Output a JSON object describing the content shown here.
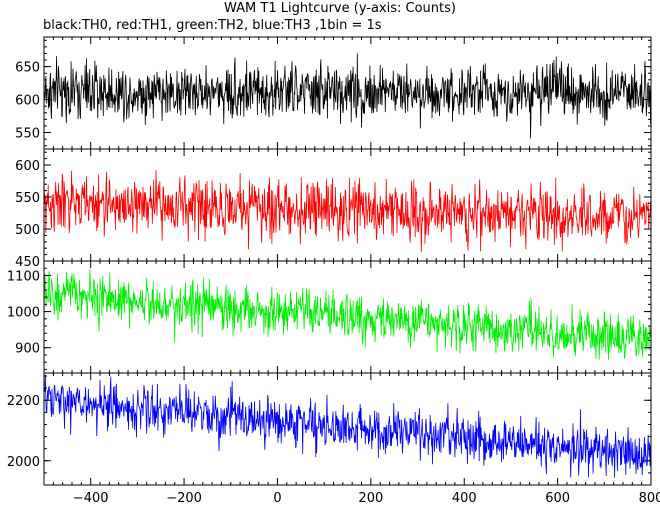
{
  "chart_data": {
    "type": "line",
    "title": "WAM T1 Lightcurve (y-axis: Counts)",
    "subtitle": "black:TH0, red:TH1, green:TH2, blue:TH3 ,1bin = 1s",
    "xlabel": "",
    "ylabel": "",
    "grid": false,
    "legend": "none",
    "xlim": [
      -500,
      800
    ],
    "xticks": [
      -400,
      -200,
      0,
      200,
      400,
      600,
      800
    ],
    "panels": [
      {
        "name": "TH0",
        "color": "#000000",
        "ylim": [
          525,
          695
        ],
        "yticks": [
          550,
          600,
          650
        ],
        "trend": {
          "start": 612,
          "end": 612
        },
        "noise_sd": 23
      },
      {
        "name": "TH1",
        "color": "#ff0000",
        "ylim": [
          450,
          625
        ],
        "yticks": [
          450,
          500,
          550,
          600
        ],
        "trend": {
          "start": 540,
          "end": 520
        },
        "noise_sd": 24
      },
      {
        "name": "TH2",
        "color": "#00ee00",
        "ylim": [
          830,
          1140
        ],
        "yticks": [
          900,
          1000,
          1100
        ],
        "trend": {
          "start": 1050,
          "end": 920
        },
        "noise_sd": 35
      },
      {
        "name": "TH3",
        "color": "#0000ff",
        "ylim": [
          1920,
          2290
        ],
        "yticks": [
          2000,
          2200
        ],
        "trend": {
          "start": 2200,
          "end": 2020
        },
        "noise_sd": 42
      }
    ]
  }
}
